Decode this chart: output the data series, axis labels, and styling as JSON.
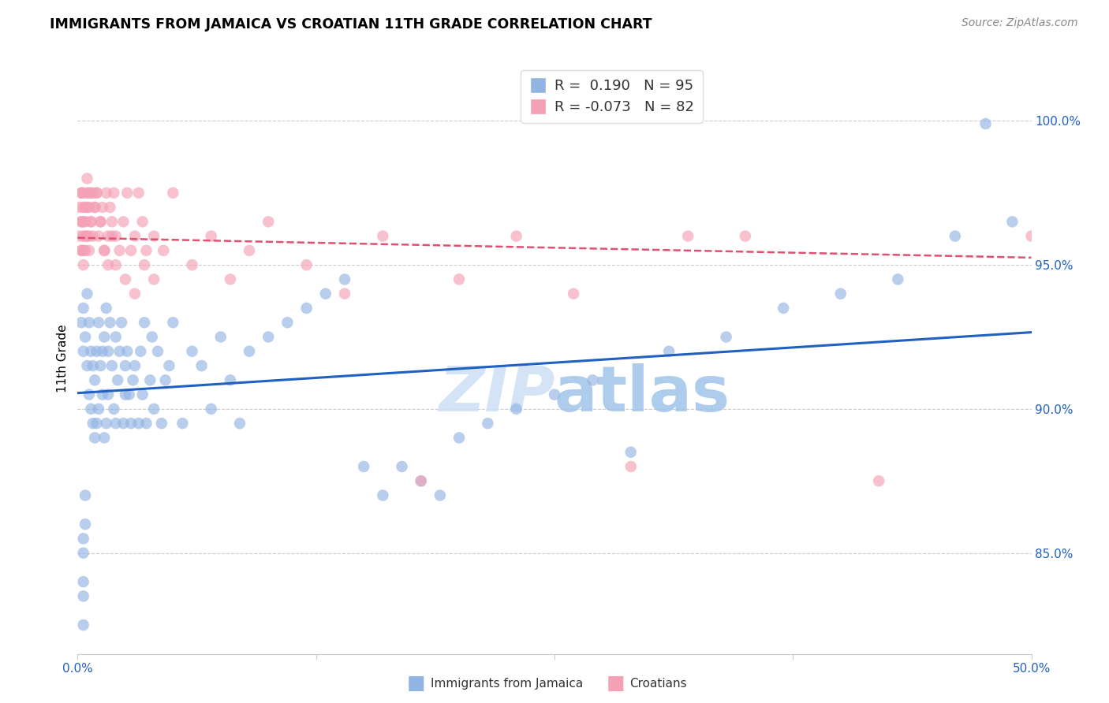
{
  "title": "IMMIGRANTS FROM JAMAICA VS CROATIAN 11TH GRADE CORRELATION CHART",
  "source": "Source: ZipAtlas.com",
  "ylabel": "11th Grade",
  "yaxis_labels": [
    "100.0%",
    "95.0%",
    "90.0%",
    "85.0%"
  ],
  "yaxis_values": [
    1.0,
    0.95,
    0.9,
    0.85
  ],
  "xlim": [
    0.0,
    0.5
  ],
  "ylim": [
    0.815,
    1.02
  ],
  "legend_blue_R": "0.190",
  "legend_blue_N": "95",
  "legend_pink_R": "-0.073",
  "legend_pink_N": "82",
  "blue_color": "#92b4e3",
  "pink_color": "#f4a0b5",
  "line_blue": "#2060c0",
  "line_pink": "#e05070",
  "blue_scatter_x": [
    0.002,
    0.003,
    0.003,
    0.004,
    0.005,
    0.005,
    0.006,
    0.006,
    0.007,
    0.007,
    0.008,
    0.008,
    0.009,
    0.009,
    0.01,
    0.01,
    0.011,
    0.011,
    0.012,
    0.013,
    0.013,
    0.014,
    0.014,
    0.015,
    0.015,
    0.016,
    0.016,
    0.017,
    0.018,
    0.019,
    0.02,
    0.02,
    0.021,
    0.022,
    0.023,
    0.024,
    0.025,
    0.025,
    0.026,
    0.027,
    0.028,
    0.029,
    0.03,
    0.032,
    0.033,
    0.034,
    0.035,
    0.036,
    0.038,
    0.039,
    0.04,
    0.042,
    0.044,
    0.046,
    0.048,
    0.05,
    0.055,
    0.06,
    0.065,
    0.07,
    0.075,
    0.08,
    0.085,
    0.09,
    0.1,
    0.11,
    0.12,
    0.13,
    0.14,
    0.15,
    0.16,
    0.17,
    0.18,
    0.19,
    0.2,
    0.215,
    0.23,
    0.25,
    0.27,
    0.29,
    0.31,
    0.34,
    0.37,
    0.4,
    0.43,
    0.46,
    0.476,
    0.003,
    0.003,
    0.003,
    0.003,
    0.003,
    0.004,
    0.004,
    0.49
  ],
  "blue_scatter_y": [
    0.93,
    0.92,
    0.935,
    0.925,
    0.94,
    0.915,
    0.905,
    0.93,
    0.9,
    0.92,
    0.915,
    0.895,
    0.91,
    0.89,
    0.92,
    0.895,
    0.93,
    0.9,
    0.915,
    0.92,
    0.905,
    0.925,
    0.89,
    0.935,
    0.895,
    0.92,
    0.905,
    0.93,
    0.915,
    0.9,
    0.925,
    0.895,
    0.91,
    0.92,
    0.93,
    0.895,
    0.915,
    0.905,
    0.92,
    0.905,
    0.895,
    0.91,
    0.915,
    0.895,
    0.92,
    0.905,
    0.93,
    0.895,
    0.91,
    0.925,
    0.9,
    0.92,
    0.895,
    0.91,
    0.915,
    0.93,
    0.895,
    0.92,
    0.915,
    0.9,
    0.925,
    0.91,
    0.895,
    0.92,
    0.925,
    0.93,
    0.935,
    0.94,
    0.945,
    0.88,
    0.87,
    0.88,
    0.875,
    0.87,
    0.89,
    0.895,
    0.9,
    0.905,
    0.91,
    0.885,
    0.92,
    0.925,
    0.935,
    0.94,
    0.945,
    0.96,
    0.999,
    0.855,
    0.84,
    0.85,
    0.835,
    0.825,
    0.86,
    0.87,
    0.965
  ],
  "pink_scatter_x": [
    0.001,
    0.001,
    0.002,
    0.002,
    0.002,
    0.003,
    0.003,
    0.003,
    0.004,
    0.004,
    0.005,
    0.005,
    0.006,
    0.006,
    0.007,
    0.008,
    0.009,
    0.01,
    0.011,
    0.012,
    0.013,
    0.014,
    0.015,
    0.016,
    0.017,
    0.018,
    0.019,
    0.02,
    0.022,
    0.024,
    0.026,
    0.028,
    0.03,
    0.032,
    0.034,
    0.036,
    0.04,
    0.045,
    0.05,
    0.06,
    0.07,
    0.08,
    0.09,
    0.1,
    0.12,
    0.14,
    0.16,
    0.18,
    0.2,
    0.23,
    0.26,
    0.29,
    0.32,
    0.35,
    0.002,
    0.002,
    0.002,
    0.003,
    0.003,
    0.003,
    0.004,
    0.004,
    0.005,
    0.005,
    0.006,
    0.006,
    0.007,
    0.007,
    0.008,
    0.009,
    0.01,
    0.012,
    0.014,
    0.016,
    0.018,
    0.02,
    0.025,
    0.03,
    0.035,
    0.04,
    0.42,
    0.5
  ],
  "pink_scatter_y": [
    0.97,
    0.96,
    0.975,
    0.965,
    0.955,
    0.97,
    0.96,
    0.95,
    0.965,
    0.955,
    0.975,
    0.96,
    0.97,
    0.955,
    0.965,
    0.96,
    0.97,
    0.975,
    0.96,
    0.965,
    0.97,
    0.955,
    0.975,
    0.96,
    0.97,
    0.965,
    0.975,
    0.96,
    0.955,
    0.965,
    0.975,
    0.955,
    0.96,
    0.975,
    0.965,
    0.955,
    0.96,
    0.955,
    0.975,
    0.95,
    0.96,
    0.945,
    0.955,
    0.965,
    0.95,
    0.94,
    0.96,
    0.875,
    0.945,
    0.96,
    0.94,
    0.88,
    0.96,
    0.96,
    0.975,
    0.965,
    0.955,
    0.975,
    0.965,
    0.955,
    0.97,
    0.96,
    0.98,
    0.97,
    0.975,
    0.96,
    0.975,
    0.965,
    0.975,
    0.97,
    0.975,
    0.965,
    0.955,
    0.95,
    0.96,
    0.95,
    0.945,
    0.94,
    0.95,
    0.945,
    0.875,
    0.96
  ]
}
